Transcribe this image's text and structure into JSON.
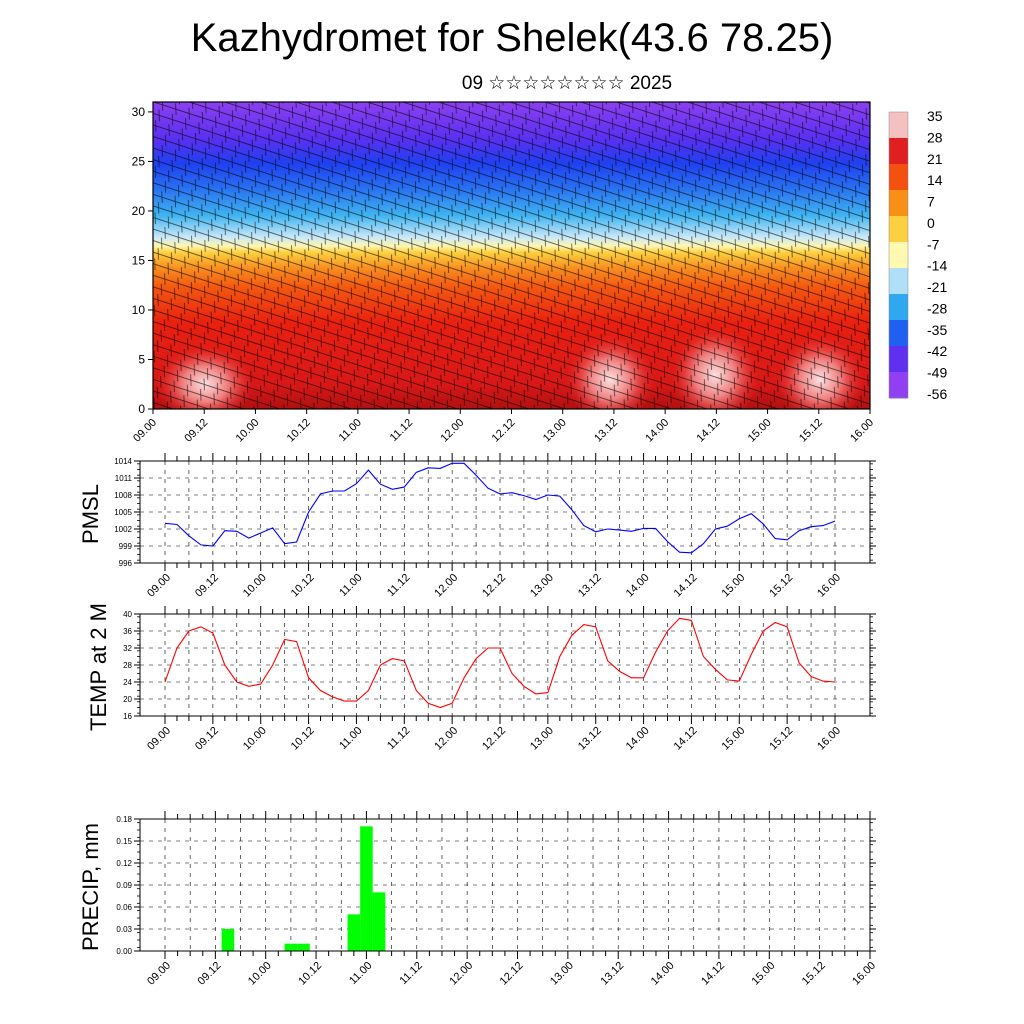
{
  "title": "Kazhydromet for Shelek(43.6 78.25)",
  "subtitle": "09 ☆☆☆☆☆☆☆☆ 2025",
  "chart_data": [
    {
      "type": "heatmap",
      "name": "cross-section",
      "y_ticks": [
        "0",
        "5",
        "10",
        "15",
        "20",
        "25",
        "30"
      ],
      "ylim": [
        0,
        31
      ],
      "x_tick_labels": [
        "09.00",
        "09.12",
        "10.00",
        "10.12",
        "11.00",
        "11.12",
        "12.00",
        "12.12",
        "13.00",
        "13.12",
        "14.00",
        "14.12",
        "15.00",
        "15.12",
        "16.00"
      ],
      "colorbar_labels": [
        "35",
        "28",
        "21",
        "14",
        "7",
        "0",
        "-7",
        "-14",
        "-21",
        "-28",
        "-35",
        "-42",
        "-49",
        "-56"
      ],
      "colorbar_colors": [
        "#f4c0c0",
        "#e02020",
        "#f45010",
        "#f89018",
        "#fcd040",
        "#fff8b0",
        "#b0e0f8",
        "#30a8f0",
        "#2060f0",
        "#6030f0",
        "#9040f0"
      ],
      "colorbar_range": [
        -63,
        42
      ]
    },
    {
      "type": "line",
      "name": "pmsl",
      "ylabel": "PMSL",
      "ylim": [
        996,
        1014
      ],
      "y_ticks": [
        "996",
        "999",
        "1002",
        "1005",
        "1008",
        "1011",
        "1014"
      ],
      "x_tick_labels": [
        "09.00",
        "09.12",
        "10.00",
        "10.12",
        "11.00",
        "11.12",
        "12.00",
        "12.12",
        "13.00",
        "13.12",
        "14.00",
        "14.12",
        "15.00",
        "15.12",
        "16.00"
      ],
      "color": "#0000ff",
      "values": [
        1003.0,
        1002.8,
        1000.8,
        999.2,
        999.0,
        1001.7,
        1001.6,
        1000.4,
        1001.3,
        1002.2,
        999.4,
        999.7,
        1005.0,
        1008.2,
        1008.7,
        1008.7,
        1010.0,
        1012.4,
        1009.9,
        1009.0,
        1009.4,
        1012.0,
        1012.8,
        1012.7,
        1013.6,
        1013.6,
        1011.5,
        1009.2,
        1008.2,
        1008.4,
        1007.9,
        1007.2,
        1008.0,
        1007.8,
        1005.4,
        1002.6,
        1001.5,
        1002.0,
        1001.8,
        1001.6,
        1002.1,
        1002.1,
        999.8,
        997.9,
        997.8,
        999.4,
        1002.0,
        1002.5,
        1003.8,
        1004.7,
        1002.9,
        1000.3,
        1000.1,
        1001.7,
        1002.4,
        1002.6,
        1003.4
      ]
    },
    {
      "type": "line",
      "name": "temp",
      "ylabel": "TEMP at 2 M",
      "ylim": [
        16,
        40
      ],
      "y_ticks": [
        "16",
        "20",
        "24",
        "28",
        "32",
        "36",
        "40"
      ],
      "x_tick_labels": [
        "09.00",
        "09.12",
        "10.00",
        "10.12",
        "11.00",
        "11.12",
        "12.00",
        "12.12",
        "13.00",
        "13.12",
        "14.00",
        "14.12",
        "15.00",
        "15.12",
        "16.00"
      ],
      "color": "#ff0000",
      "values": [
        24,
        32,
        36,
        37,
        35.5,
        28,
        24,
        23,
        23.5,
        28,
        34,
        33.5,
        25,
        22,
        20.5,
        19.5,
        19.5,
        22,
        28,
        29.5,
        29,
        22,
        19,
        18,
        19,
        25,
        29.5,
        32,
        32,
        26,
        23,
        21.2,
        21.5,
        30,
        35,
        37.5,
        37,
        29,
        26.5,
        25,
        25,
        31,
        36,
        39,
        38.5,
        30,
        27,
        24.5,
        24.2,
        30.5,
        36,
        38,
        37,
        28.5,
        25.3,
        24.2,
        24
      ]
    },
    {
      "type": "bar",
      "name": "precip",
      "ylabel": "PRECIP, mm",
      "ylim": [
        0,
        0.18
      ],
      "y_ticks": [
        "0.00",
        "0.03",
        "0.06",
        "0.09",
        "0.12",
        "0.15",
        "0.18"
      ],
      "x_tick_labels": [
        "09.00",
        "09.12",
        "10.00",
        "10.12",
        "11.00",
        "11.12",
        "12.00",
        "12.12",
        "13.00",
        "13.12",
        "14.00",
        "14.12",
        "15.00",
        "15.12",
        "16.00"
      ],
      "color": "#00ff00",
      "values": [
        0,
        0,
        0,
        0,
        0,
        0.03,
        0,
        0,
        0,
        0,
        0.01,
        0.01,
        0,
        0,
        0,
        0.05,
        0.17,
        0.08,
        0,
        0,
        0,
        0,
        0,
        0,
        0,
        0,
        0,
        0,
        0,
        0,
        0,
        0,
        0,
        0,
        0,
        0,
        0,
        0,
        0,
        0,
        0,
        0,
        0,
        0,
        0,
        0,
        0,
        0,
        0,
        0,
        0,
        0,
        0,
        0,
        0,
        0,
        0
      ]
    }
  ]
}
